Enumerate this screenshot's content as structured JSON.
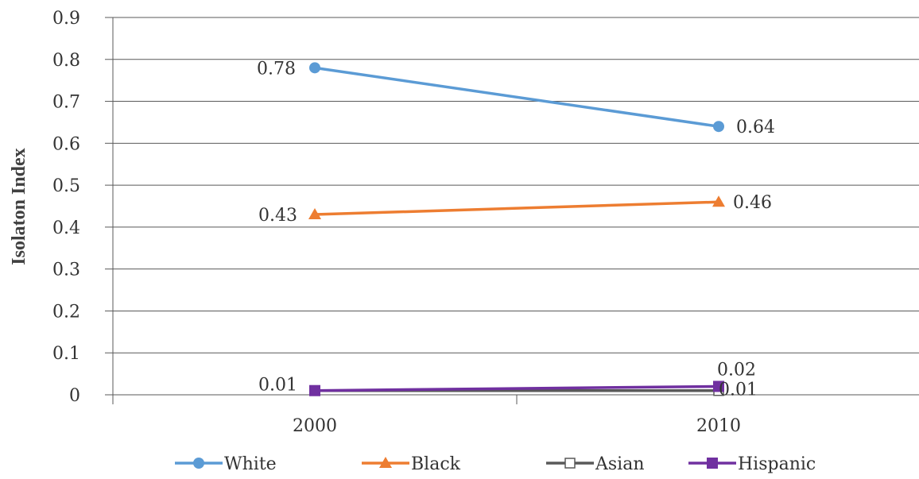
{
  "chart_data": {
    "type": "line",
    "title": "",
    "xlabel": "",
    "ylabel": "Isolaton Index",
    "categories": [
      "2000",
      "2010"
    ],
    "ylim": [
      0,
      0.9
    ],
    "yticks": [
      "0",
      "0.1",
      "0.2",
      "0.3",
      "0.4",
      "0.5",
      "0.6",
      "0.7",
      "0.8",
      "0.9"
    ],
    "grid": true,
    "legend_position": "bottom",
    "series": [
      {
        "name": "White",
        "values": [
          0.78,
          0.64
        ],
        "labels": [
          "0.78",
          "0.64"
        ],
        "color": "#5B9BD5",
        "marker": "circle"
      },
      {
        "name": "Black",
        "values": [
          0.43,
          0.46
        ],
        "labels": [
          "0.43",
          "0.46"
        ],
        "color": "#ED7D31",
        "marker": "triangle"
      },
      {
        "name": "Asian",
        "values": [
          0.01,
          0.01
        ],
        "labels": [
          "",
          "0.01"
        ],
        "color": "#595959",
        "marker": "square-open"
      },
      {
        "name": "Hispanic",
        "values": [
          0.01,
          0.02
        ],
        "labels": [
          "0.01",
          "0.02"
        ],
        "color": "#7030A0",
        "marker": "square"
      }
    ]
  }
}
